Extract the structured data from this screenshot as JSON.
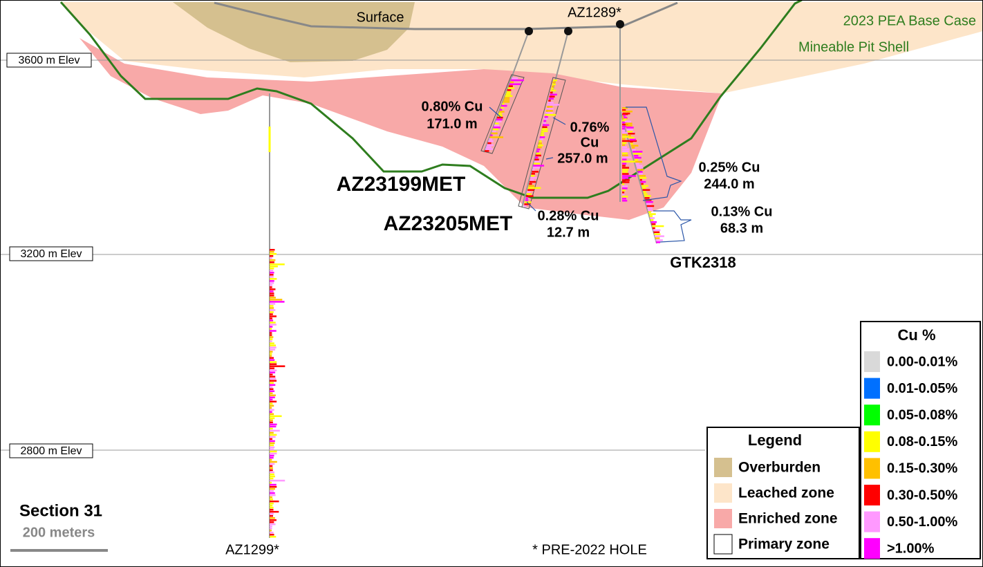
{
  "elevations": [
    "3600 m Elev",
    "3200 m Elev",
    "2800 m Elev"
  ],
  "surface": "Surface",
  "pit_shell": {
    "line1": "2023 PEA Base Case",
    "line2": "Mineable Pit Shell"
  },
  "holes": {
    "az1289": "AZ1289*",
    "az1299": "AZ1299*",
    "az23199": "AZ23199MET",
    "az23205": "AZ23205MET",
    "gtk2318": "GTK2318"
  },
  "intercepts": [
    {
      "grade": "0.80% Cu",
      "length": "171.0 m"
    },
    {
      "grade": "0.76%",
      "unit": "Cu",
      "length": "257.0 m"
    },
    {
      "grade": "0.25% Cu",
      "length": "244.0 m"
    },
    {
      "grade": "0.13% Cu",
      "length": "68.3 m"
    },
    {
      "grade": "0.28% Cu",
      "length": "12.7 m"
    }
  ],
  "section": {
    "title": "Section 31",
    "scale": "200 meters"
  },
  "note": "* PRE-2022 HOLE",
  "legend": {
    "title": "Legend",
    "items": [
      {
        "label": "Overburden",
        "color": "#d5c08f"
      },
      {
        "label": "Leached zone",
        "color": "#fde5c9"
      },
      {
        "label": "Enriched zone",
        "color": "#f8a9a8"
      },
      {
        "label": "Primary zone",
        "color": "#ffffff"
      }
    ]
  },
  "cu_legend": {
    "title": "Cu %",
    "items": [
      {
        "label": "0.00-0.01%",
        "color": "#d9d9d9"
      },
      {
        "label": "0.01-0.05%",
        "color": "#0070ff"
      },
      {
        "label": "0.05-0.08%",
        "color": "#00ff00"
      },
      {
        "label": "0.08-0.15%",
        "color": "#ffff00"
      },
      {
        "label": "0.15-0.30%",
        "color": "#ffc000"
      },
      {
        "label": "0.30-0.50%",
        "color": "#ff0000"
      },
      {
        "label": "0.50-1.00%",
        "color": "#ff99ff"
      },
      {
        "label": ">1.00%",
        "color": "#ff00ff"
      }
    ]
  }
}
